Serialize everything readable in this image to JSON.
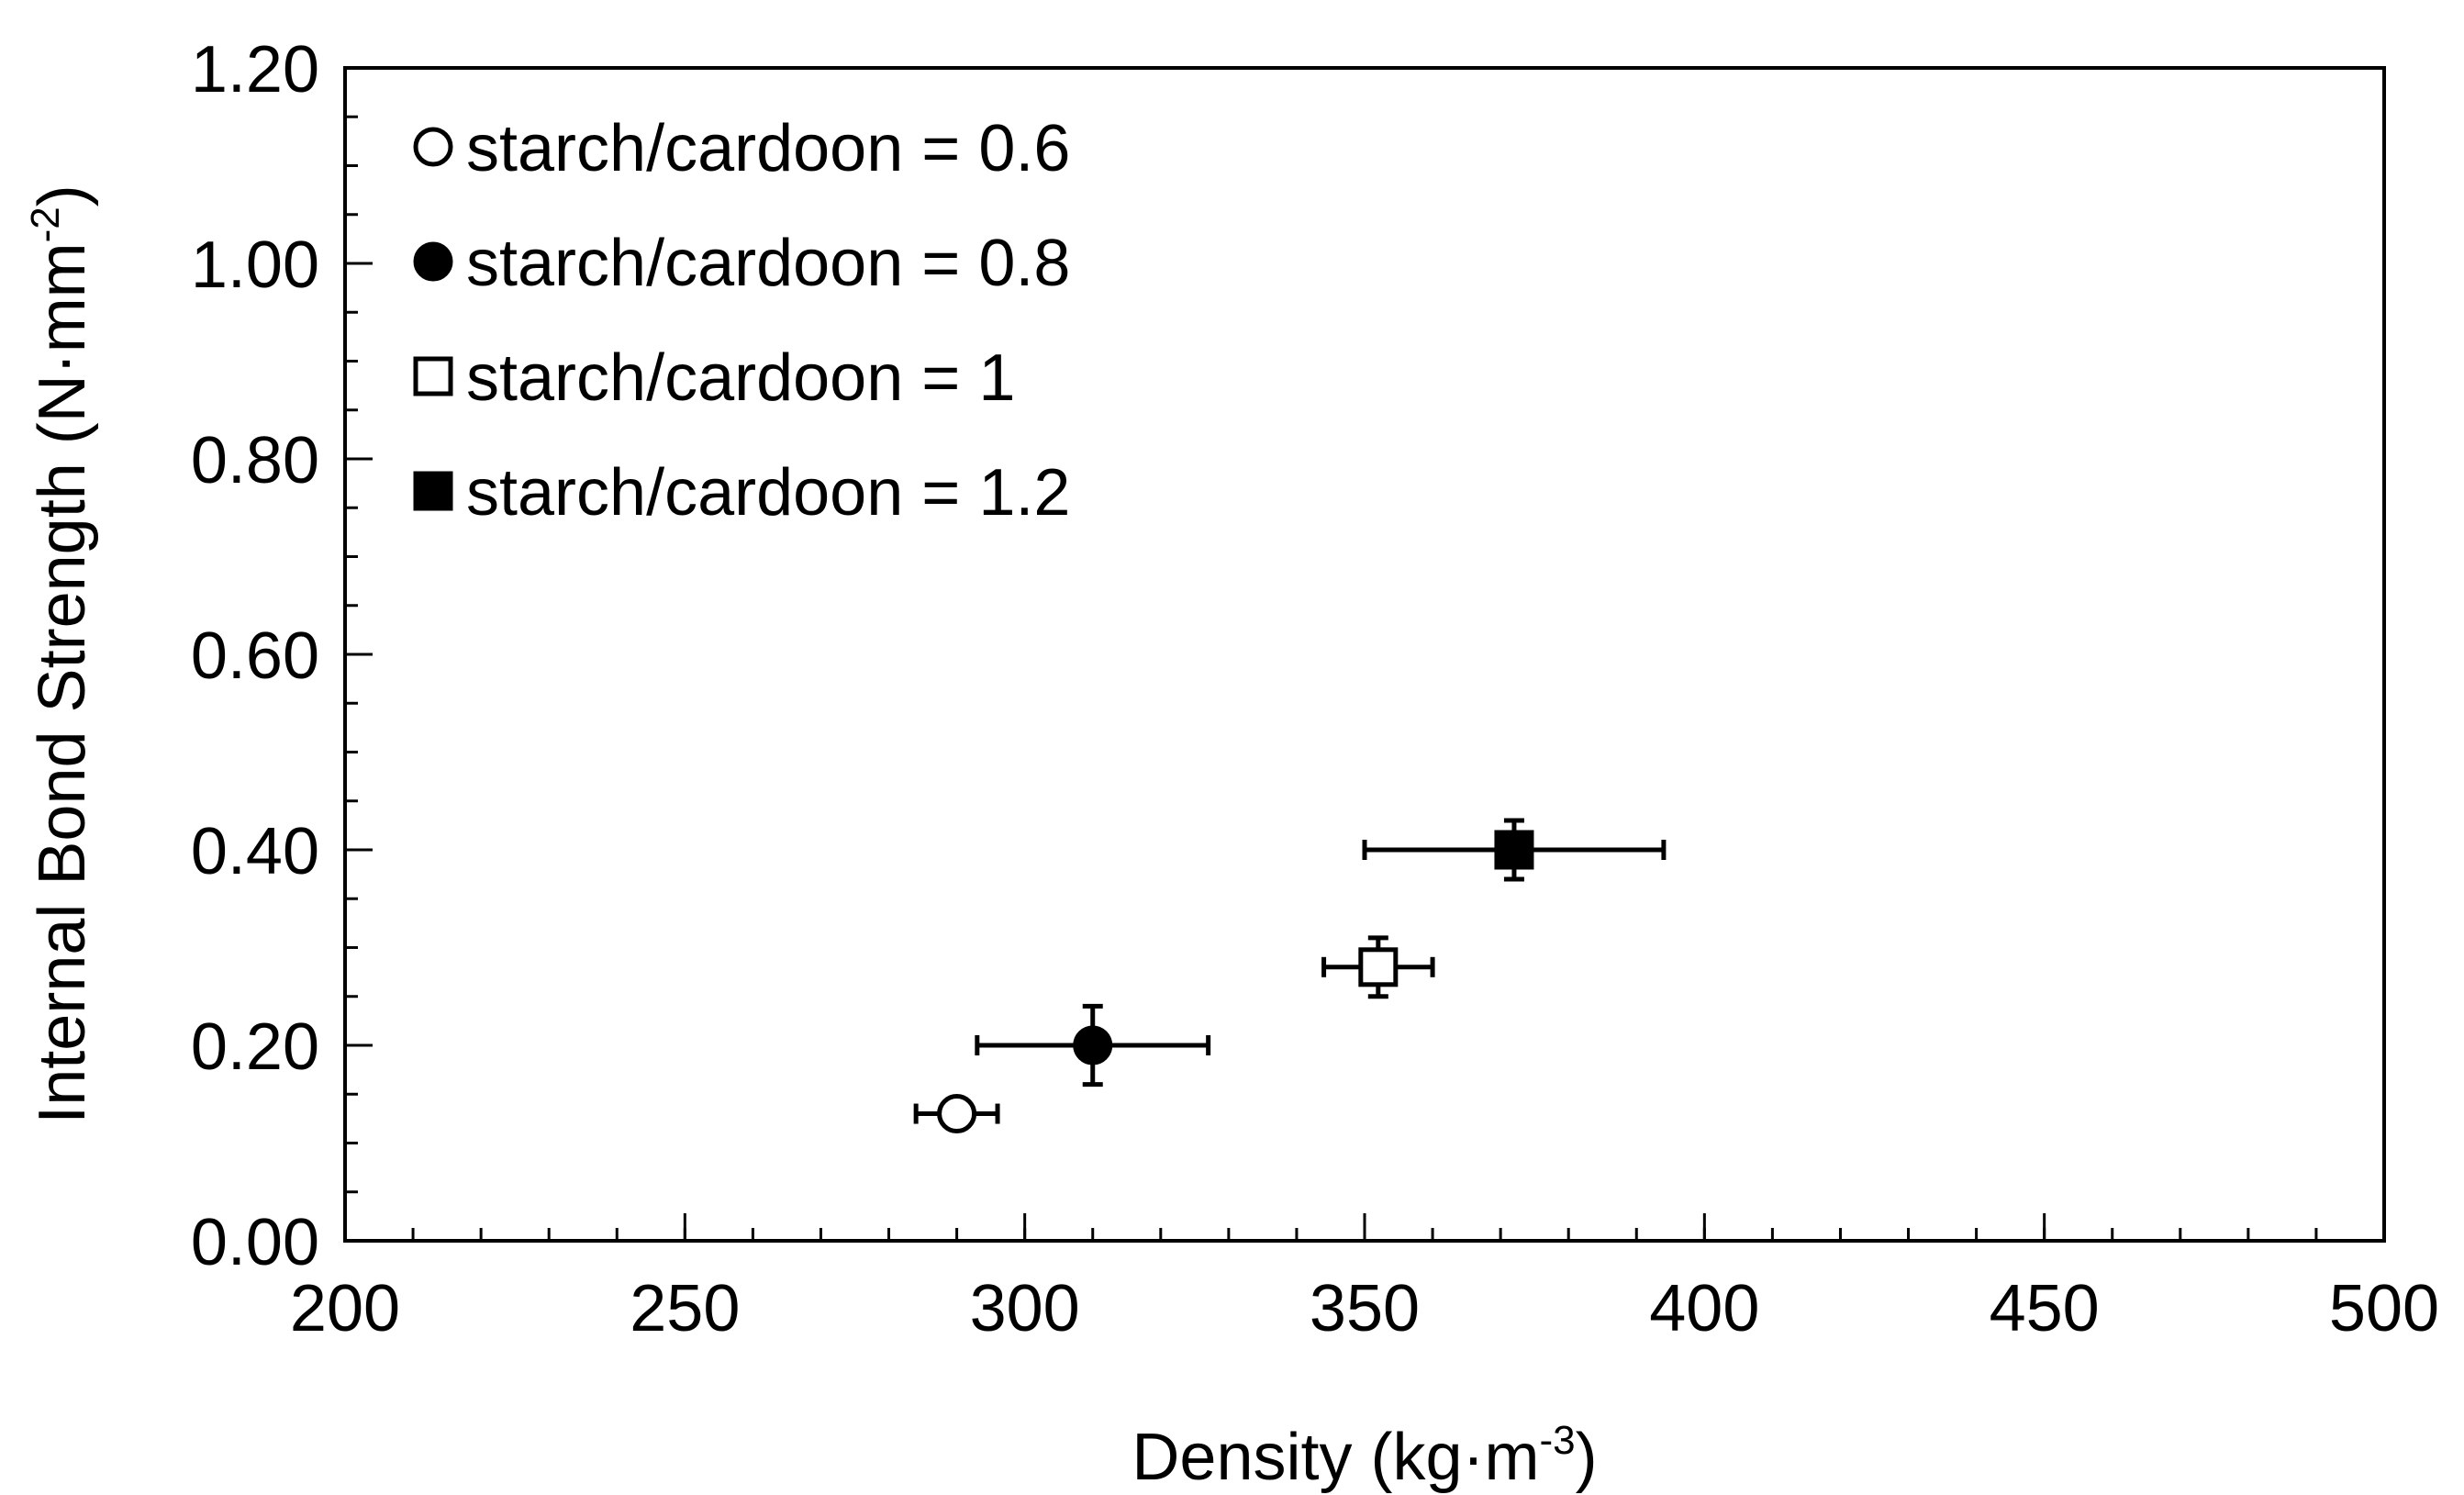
{
  "chart_data": {
    "type": "scatter",
    "title": "",
    "xlabel": {
      "text": "Density (kg·m",
      "sup": "-3",
      "close": ")"
    },
    "ylabel": {
      "text": "Internal Bond Strength (N·mm",
      "sup": "-2",
      "close": ")"
    },
    "xlim": [
      200,
      500
    ],
    "ylim": [
      0,
      1.2
    ],
    "x_ticks": [
      200,
      250,
      300,
      350,
      400,
      450,
      500
    ],
    "x_tick_labels": [
      "200",
      "250",
      "300",
      "350",
      "400",
      "450",
      "500"
    ],
    "x_minor_step": 10,
    "y_ticks": [
      0,
      0.2,
      0.4,
      0.6,
      0.8,
      1.0,
      1.2
    ],
    "y_tick_labels": [
      "0.00",
      "0.20",
      "0.40",
      "0.60",
      "0.80",
      "1.00",
      "1.20"
    ],
    "y_minor_step": 0.05,
    "grid": false,
    "legend_position": "top-left",
    "series": [
      {
        "name": "starch/cardoon = 0.6",
        "marker": "circle",
        "fill": "#ffffff",
        "stroke": "#000000",
        "x": 290,
        "y": 0.13,
        "x_err": 6,
        "y_err": 0.01
      },
      {
        "name": "starch/cardoon = 0.8",
        "marker": "circle",
        "fill": "#000000",
        "stroke": "#000000",
        "x": 310,
        "y": 0.2,
        "x_err": 17,
        "y_err": 0.04
      },
      {
        "name": "starch/cardoon = 1",
        "marker": "square",
        "fill": "#ffffff",
        "stroke": "#000000",
        "x": 352,
        "y": 0.28,
        "x_err": 8,
        "y_err": 0.03
      },
      {
        "name": "starch/cardoon = 1.2",
        "marker": "square",
        "fill": "#000000",
        "stroke": "#000000",
        "x": 372,
        "y": 0.4,
        "x_err": 22,
        "y_err": 0.03
      }
    ]
  }
}
